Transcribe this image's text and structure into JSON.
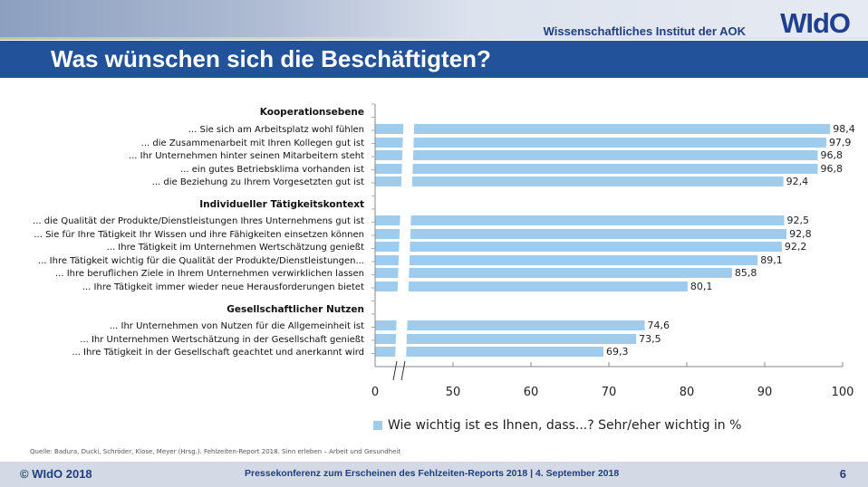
{
  "header": {
    "institute": "Wissenschaftliches Institut der AOK",
    "logo": "WIdO",
    "title": "Was wünschen sich die Beschäftigten?"
  },
  "chart_data": {
    "type": "bar",
    "orientation": "horizontal",
    "xlim": [
      0,
      100
    ],
    "axis_break": [
      0,
      50
    ],
    "xticks": [
      "0",
      "50",
      "60",
      "70",
      "80",
      "90",
      "100"
    ],
    "legend": "Wie wichtig ist es Ihnen, dass...? Sehr/eher wichtig in %",
    "groups": [
      {
        "name": "Kooperationsebene",
        "items": [
          {
            "label": "... Sie sich am Arbeitsplatz wohl fühlen",
            "value": 98.4,
            "value_label": "98,4"
          },
          {
            "label": "... die Zusammenarbeit mit Ihren Kollegen gut ist",
            "value": 97.9,
            "value_label": "97,9"
          },
          {
            "label": "... Ihr Unternehmen hinter seinen Mitarbeitern steht",
            "value": 96.8,
            "value_label": "96,8"
          },
          {
            "label": "... ein gutes Betriebsklima vorhanden ist",
            "value": 96.8,
            "value_label": "96,8"
          },
          {
            "label": "... die Beziehung zu Ihrem Vorgesetzten gut ist",
            "value": 92.4,
            "value_label": "92,4"
          }
        ]
      },
      {
        "name": "Individueller Tätigkeitskontext",
        "items": [
          {
            "label": "... die Qualität der Produkte/Dienstleistungen Ihres Unternehmens gut ist",
            "value": 92.5,
            "value_label": "92,5"
          },
          {
            "label": "... Sie für Ihre Tätigkeit Ihr Wissen und ihre Fähigkeiten einsetzen können",
            "value": 92.8,
            "value_label": "92,8"
          },
          {
            "label": "... Ihre Tätigkeit im Unternehmen Wertschätzung genießt",
            "value": 92.2,
            "value_label": "92,2"
          },
          {
            "label": "... Ihre Tätigkeit wichtig für die Qualität der Produkte/Dienstleistungen...",
            "value": 89.1,
            "value_label": "89,1"
          },
          {
            "label": "... Ihre beruflichen Ziele in Ihrem Unternehmen verwirklichen lassen",
            "value": 85.8,
            "value_label": "85,8"
          },
          {
            "label": "... Ihre Tätigkeit immer wieder neue Herausforderungen bietet",
            "value": 80.1,
            "value_label": "80,1"
          }
        ]
      },
      {
        "name": "Gesellschaftlicher Nutzen",
        "items": [
          {
            "label": "... Ihr Unternehmen von Nutzen für die Allgemeinheit ist",
            "value": 74.6,
            "value_label": "74,6"
          },
          {
            "label": "... Ihr Unternehmen Wertschätzung in der Gesellschaft genießt",
            "value": 73.5,
            "value_label": "73,5"
          },
          {
            "label": "... Ihre Tätigkeit in der Gesellschaft geachtet und anerkannt wird",
            "value": 69.3,
            "value_label": "69,3"
          }
        ]
      }
    ],
    "colors": {
      "bar": "#9fcbed"
    }
  },
  "footer": {
    "source": "Quelle: Badura, Ducki, Schröder, Klose, Meyer (Hrsg.). Fehlzeiten-Report 2018. Sinn erleben – Arbeit und Gesundheit",
    "copyright": "© WIdO 2018",
    "event": "Pressekonferenz zum Erscheinen des Fehlzeiten-Reports 2018 | 4. September 2018",
    "page": "6"
  }
}
